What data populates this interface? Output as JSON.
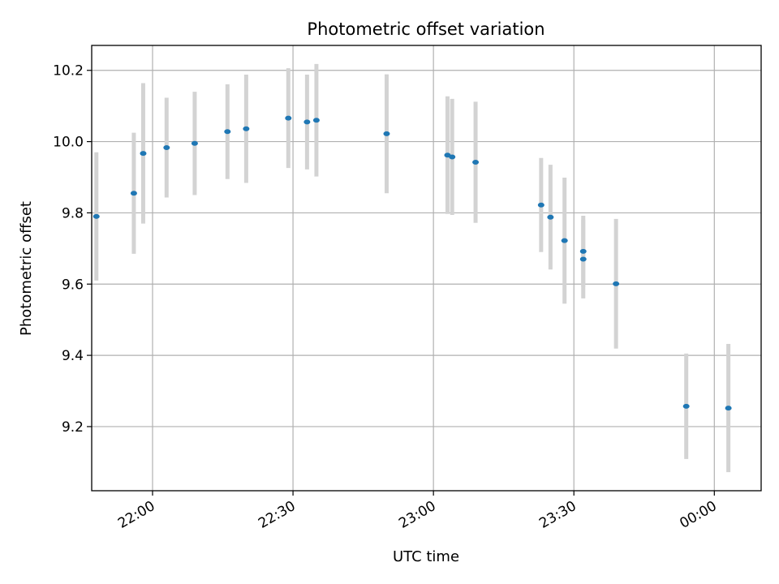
{
  "chart_data": {
    "type": "scatter",
    "title": "Photometric offset variation",
    "xlabel": "UTC time",
    "ylabel": "Photometric offset",
    "x_ticks": [
      "22:00",
      "22:30",
      "23:00",
      "23:30",
      "00:00"
    ],
    "y_ticks": [
      "9.2",
      "9.4",
      "9.6",
      "9.8",
      "10.0",
      "10.2"
    ],
    "y_range": [
      9.02,
      10.27
    ],
    "x_range": [
      "21:47",
      "00:10"
    ],
    "grid": true,
    "colors": {
      "points": "#1f77b4",
      "error_bars": "#d3d3d3",
      "grid": "#b0b0b0"
    },
    "points": [
      {
        "x": "21:48",
        "y": 9.79,
        "err": 0.18
      },
      {
        "x": "21:56",
        "y": 9.855,
        "err": 0.17
      },
      {
        "x": "21:58",
        "y": 9.967,
        "err": 0.197
      },
      {
        "x": "22:03",
        "y": 9.983,
        "err": 0.14
      },
      {
        "x": "22:09",
        "y": 9.995,
        "err": 0.145
      },
      {
        "x": "22:16",
        "y": 10.028,
        "err": 0.133
      },
      {
        "x": "22:20",
        "y": 10.036,
        "err": 0.152
      },
      {
        "x": "22:29",
        "y": 10.066,
        "err": 0.14
      },
      {
        "x": "22:33",
        "y": 10.055,
        "err": 0.133
      },
      {
        "x": "22:35",
        "y": 10.06,
        "err": 0.158
      },
      {
        "x": "22:50",
        "y": 10.022,
        "err": 0.167
      },
      {
        "x": "23:03",
        "y": 9.962,
        "err": 0.165
      },
      {
        "x": "23:04",
        "y": 9.957,
        "err": 0.163
      },
      {
        "x": "23:09",
        "y": 9.942,
        "err": 0.17
      },
      {
        "x": "23:23",
        "y": 9.822,
        "err": 0.132
      },
      {
        "x": "23:25",
        "y": 9.788,
        "err": 0.147
      },
      {
        "x": "23:28",
        "y": 9.722,
        "err": 0.177
      },
      {
        "x": "23:32",
        "y": 9.692,
        "err": 0.1
      },
      {
        "x": "23:32",
        "y": 9.67,
        "err": 0.11
      },
      {
        "x": "23:39",
        "y": 9.601,
        "err": 0.182
      },
      {
        "x": "23:54",
        "y": 9.257,
        "err": 0.148
      },
      {
        "x": "00:03",
        "y": 9.252,
        "err": 0.18
      }
    ]
  }
}
